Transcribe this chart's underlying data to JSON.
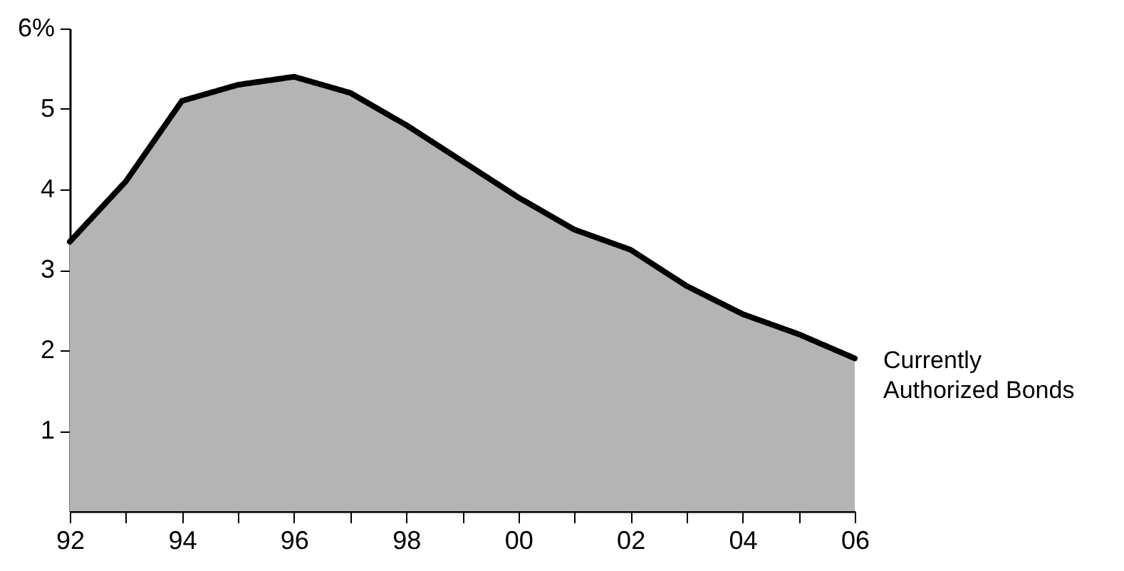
{
  "chart_data": {
    "type": "area",
    "categories": [
      "92",
      null,
      "94",
      null,
      "96",
      null,
      "98",
      null,
      "00",
      null,
      "02",
      null,
      "04",
      null,
      "06"
    ],
    "series": [
      {
        "name": "Currently Authorized Bonds",
        "color": "#b4b4b4",
        "values": [
          3.35,
          4.1,
          5.1,
          5.3,
          5.4,
          5.2,
          4.8,
          4.35,
          3.9,
          3.5,
          3.25,
          2.8,
          2.45,
          2.2,
          1.9
        ]
      }
    ],
    "ylim": [
      0,
      6
    ],
    "yticks": [
      1,
      2,
      3,
      4,
      5,
      {
        "value": 6,
        "label": "6%"
      }
    ],
    "legend": false
  }
}
